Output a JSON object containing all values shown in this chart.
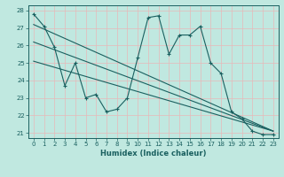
{
  "title": "",
  "xlabel": "Humidex (Indice chaleur)",
  "bg_color": "#c0e8e0",
  "grid_color": "#e8b8b8",
  "line_color": "#1a6060",
  "xlim": [
    -0.5,
    23.5
  ],
  "ylim": [
    20.7,
    28.3
  ],
  "yticks": [
    21,
    22,
    23,
    24,
    25,
    26,
    27,
    28
  ],
  "xticks": [
    0,
    1,
    2,
    3,
    4,
    5,
    6,
    7,
    8,
    9,
    10,
    11,
    12,
    13,
    14,
    15,
    16,
    17,
    18,
    19,
    20,
    21,
    22,
    23
  ],
  "line1_x": [
    0,
    1,
    2,
    3,
    4,
    5,
    6,
    7,
    8,
    9,
    10,
    11,
    12,
    13,
    14,
    15,
    16,
    17,
    18,
    19,
    20,
    21,
    22,
    23
  ],
  "line1_y": [
    27.8,
    27.1,
    25.9,
    23.7,
    25.0,
    23.0,
    23.2,
    22.2,
    22.35,
    23.0,
    25.3,
    27.6,
    27.7,
    25.5,
    26.6,
    26.6,
    27.1,
    25.0,
    24.4,
    22.2,
    21.8,
    21.1,
    20.9,
    20.9
  ],
  "line2_x": [
    0,
    23
  ],
  "line2_y": [
    27.2,
    21.1
  ],
  "line3_x": [
    0,
    23
  ],
  "line3_y": [
    26.2,
    21.1
  ],
  "line4_x": [
    0,
    23
  ],
  "line4_y": [
    25.1,
    21.1
  ]
}
